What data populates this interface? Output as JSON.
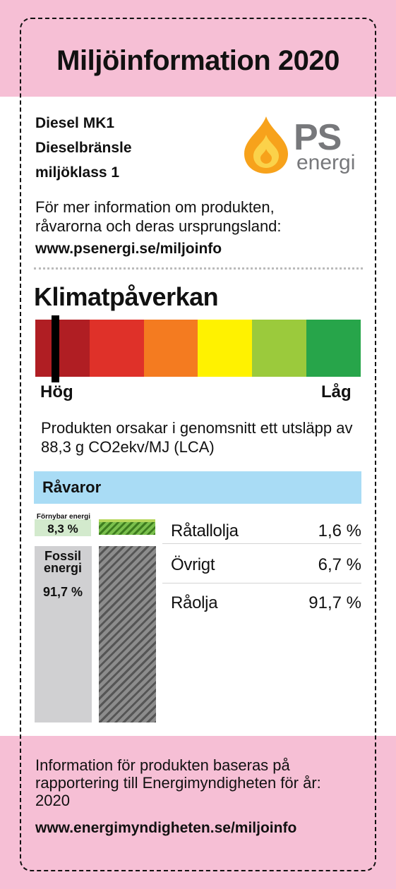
{
  "header": {
    "title": "Miljöinformation 2020"
  },
  "product": {
    "name": "Diesel MK1",
    "type": "Dieselbränsle",
    "class": "miljöklass 1"
  },
  "logo": {
    "brand": "PS",
    "sub": "energi",
    "colors": {
      "flame_outer": "#f7a21b",
      "flame_inner": "#fbd24a",
      "text": "#77787b"
    }
  },
  "info": {
    "text": "För mer information om produkten, råvarorna och deras ursprungsland:",
    "url": "www.psenergi.se/miljoinfo"
  },
  "climate": {
    "title": "Klimatpåverkan",
    "scale_colors": [
      "#b01e23",
      "#df3129",
      "#f47b20",
      "#fff200",
      "#9bca3c",
      "#27a54a"
    ],
    "marker_segment": 0,
    "high_label": "Hög",
    "low_label": "Låg",
    "description": "Produkten orsakar i genomsnitt ett utsläpp av 88,3 g CO2ekv/MJ (LCA)"
  },
  "raw_materials": {
    "title": "Råvaror",
    "renewable": {
      "label": "Förnybar energi",
      "percent": "8,3 %"
    },
    "fossil": {
      "label_line1": "Fossil",
      "label_line2": "energi",
      "percent": "91,7 %"
    },
    "rows": [
      {
        "name": "Råtallolja",
        "value": "1,6 %"
      },
      {
        "name": "Övrigt",
        "value": "6,7 %"
      },
      {
        "name": "Råolja",
        "value": "91,7 %"
      }
    ]
  },
  "footer": {
    "text": "Information för produkten baseras på rapportering till Energimyndigheten för år: 2020",
    "url": "www.energimyndigheten.se/miljoinfo"
  }
}
